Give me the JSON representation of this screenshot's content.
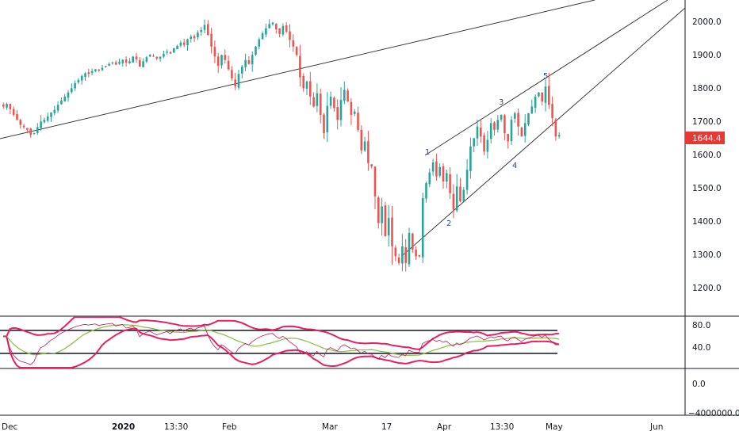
{
  "colors": {
    "up": "#26a69a",
    "down": "#ef5350",
    "grid": "#ffffff",
    "axis_line": "#131722",
    "trendline": "#3a3a3a",
    "price_badge": "#e53935",
    "rsi_line": "#c2185b",
    "rsi_ma": "#8bc34a",
    "band": "#e91e63",
    "wave_label": "#2a4d8f"
  },
  "last_price": "1644.4",
  "price_axis": {
    "ticks": [
      "2000.0",
      "1900.0",
      "1800.0",
      "1700.0",
      "1600.0",
      "1500.0",
      "1400.0",
      "1300.0",
      "1200.0"
    ],
    "values": [
      2000,
      1900,
      1800,
      1700,
      1600,
      1500,
      1400,
      1300,
      1200
    ],
    "range": [
      1105,
      2050
    ]
  },
  "rsi_axis": {
    "ticks": [
      "80.0",
      "40.0"
    ],
    "values": [
      80,
      40
    ],
    "range": [
      8,
      95
    ],
    "upper_level": 70,
    "lower_level": 30
  },
  "volume_axis": {
    "ticks": [
      "0.0",
      "−4000000.0"
    ]
  },
  "time_axis": {
    "labels": [
      {
        "text": "Dec",
        "bold": false
      },
      {
        "text": "2020",
        "bold": true
      },
      {
        "text": "13:30",
        "bold": false
      },
      {
        "text": "Feb",
        "bold": false
      },
      {
        "text": "Mar",
        "bold": false
      },
      {
        "text": "17",
        "bold": false
      },
      {
        "text": "Apr",
        "bold": false
      },
      {
        "text": "13:30",
        "bold": false
      },
      {
        "text": "May",
        "bold": false
      },
      {
        "text": "Jun",
        "bold": false
      }
    ]
  },
  "wave_labels": [
    "1",
    "2",
    "3",
    "4",
    "5"
  ],
  "chart_data": {
    "type": "candlestick",
    "interval": "daily",
    "ylim": [
      1105,
      2050
    ],
    "candles_close": [
      1730,
      1738,
      1722,
      1705,
      1690,
      1675,
      1668,
      1660,
      1645,
      1650,
      1668,
      1685,
      1690,
      1700,
      1712,
      1720,
      1735,
      1748,
      1760,
      1772,
      1785,
      1800,
      1810,
      1822,
      1830,
      1828,
      1836,
      1842,
      1838,
      1846,
      1852,
      1858,
      1862,
      1856,
      1864,
      1870,
      1862,
      1866,
      1880,
      1872,
      1850,
      1866,
      1878,
      1886,
      1880,
      1874,
      1880,
      1888,
      1895,
      1889,
      1905,
      1912,
      1922,
      1915,
      1932,
      1940,
      1935,
      1952,
      1960,
      1975,
      1945,
      1910,
      1880,
      1852,
      1885,
      1870,
      1842,
      1815,
      1790,
      1828,
      1850,
      1870,
      1858,
      1885,
      1910,
      1932,
      1950,
      1965,
      1978,
      1982,
      1962,
      1948,
      1972,
      1955,
      1930,
      1910,
      1885,
      1818,
      1785,
      1805,
      1760,
      1730,
      1770,
      1705,
      1650,
      1732,
      1760,
      1725,
      1690,
      1750,
      1780,
      1745,
      1705,
      1715,
      1660,
      1598,
      1625,
      1560,
      1550,
      1460,
      1380,
      1430,
      1340,
      1395,
      1310,
      1280,
      1260,
      1310,
      1260,
      1350,
      1300,
      1280,
      1280,
      1455,
      1500,
      1532,
      1562,
      1520,
      1548,
      1505,
      1530,
      1470,
      1420,
      1490,
      1445,
      1480,
      1540,
      1610,
      1635,
      1670,
      1640,
      1595,
      1630,
      1680,
      1660,
      1690,
      1705,
      1650,
      1625,
      1690,
      1710,
      1670,
      1640,
      1680,
      1710,
      1730,
      1760,
      1772,
      1745,
      1790,
      1735,
      1695,
      1640,
      1644.4
    ],
    "rsi_range": [
      0,
      100
    ],
    "rsi_upper": 70,
    "rsi_lower": 30
  }
}
